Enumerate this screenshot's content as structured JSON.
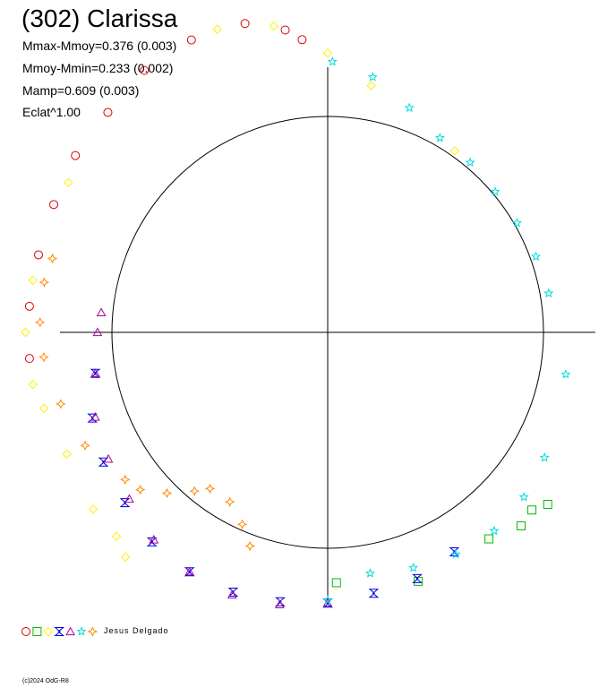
{
  "title": "(302) Clarissa",
  "stats": [
    "Mmax-Mmoy=0.376 (0.003)",
    "Mmoy-Mmin=0.233 (0.002)",
    "Mamp=0.609 (0.003)",
    "Eclat^1.00"
  ],
  "legend_credit": "Jesus Delgado",
  "copyright": "(c)2024 OdG-R8",
  "colors": {
    "red": "#dd0000",
    "green": "#00bb00",
    "yellow": "#ffee00",
    "blue": "#0000dd",
    "purple": "#aa0099",
    "cyan": "#00dddd",
    "orange": "#ff8800"
  },
  "chart_data": {
    "type": "scatter",
    "polar": true,
    "reference_circle_magnitude": 0.0,
    "radius_unit": "relative magnitude (mag)",
    "series": [
      {
        "marker": "circle",
        "color_key": "red",
        "points": [
          [
            -95,
            0.29
          ],
          [
            -85,
            0.29
          ],
          [
            -75,
            0.29
          ],
          [
            -65,
            0.3
          ],
          [
            -55,
            0.32
          ],
          [
            -45,
            0.33
          ],
          [
            -35,
            0.36
          ],
          [
            -25,
            0.37
          ],
          [
            -15,
            0.36
          ],
          [
            -8,
            0.31
          ],
          [
            -5,
            0.27
          ]
        ]
      },
      {
        "marker": "square",
        "color_key": "green",
        "points": [
          [
            128,
            0.22
          ],
          [
            131,
            0.19
          ],
          [
            135,
            0.2
          ],
          [
            142,
            0.16
          ],
          [
            160,
            0.17
          ],
          [
            178,
            0.12
          ]
        ]
      },
      {
        "marker": "diamond",
        "color_key": "yellow",
        "points": [
          [
            -115,
            0.25
          ],
          [
            -105,
            0.27
          ],
          [
            -100,
            0.29
          ],
          [
            -90,
            0.3
          ],
          [
            -80,
            0.29
          ],
          [
            -60,
            0.29
          ],
          [
            -20,
            0.37
          ],
          [
            -10,
            0.33
          ],
          [
            0,
            0.22
          ],
          [
            10,
            0.12
          ],
          [
            35,
            0.02
          ],
          [
            -138,
            0.3
          ],
          [
            -134,
            0.27
          ],
          [
            -127,
            0.27
          ]
        ]
      },
      {
        "marker": "cross",
        "color_key": "blue",
        "points": [
          [
            150,
            0.13
          ],
          [
            160,
            0.16
          ],
          [
            170,
            0.17
          ],
          [
            180,
            0.19
          ],
          [
            190,
            0.2
          ],
          [
            200,
            0.21
          ],
          [
            210,
            0.21
          ],
          [
            220,
            0.2
          ],
          [
            230,
            0.17
          ],
          [
            240,
            0.15
          ],
          [
            250,
            0.12
          ],
          [
            260,
            0.07
          ]
        ]
      },
      {
        "marker": "triangle",
        "color_key": "purple",
        "points": [
          [
            180,
            0.19
          ],
          [
            190,
            0.21
          ],
          [
            200,
            0.22
          ],
          [
            210,
            0.21
          ],
          [
            220,
            0.19
          ],
          [
            230,
            0.15
          ],
          [
            240,
            0.13
          ],
          [
            250,
            0.11
          ],
          [
            260,
            0.07
          ],
          [
            270,
            0.05
          ],
          [
            275,
            0.04
          ]
        ]
      },
      {
        "marker": "star",
        "color_key": "cyan",
        "points": [
          [
            1,
            0.19
          ],
          [
            10,
            0.15
          ],
          [
            20,
            0.08
          ],
          [
            30,
            0.03
          ],
          [
            40,
            0.02
          ],
          [
            50,
            0.01
          ],
          [
            60,
            0.01
          ],
          [
            70,
            0.02
          ],
          [
            80,
            0.03
          ],
          [
            100,
            0.09
          ],
          [
            120,
            0.12
          ],
          [
            130,
            0.14
          ],
          [
            140,
            0.15
          ],
          [
            150,
            0.14
          ],
          [
            160,
            0.12
          ],
          [
            170,
            0.1
          ],
          [
            180,
            0.18
          ]
        ]
      },
      {
        "marker": "fourstar",
        "color_key": "orange",
        "points": [
          [
            -160,
            0.04
          ],
          [
            -156,
            -0.02
          ],
          [
            -150,
            -0.07
          ],
          [
            -143,
            -0.07
          ],
          [
            -140,
            -0.03
          ],
          [
            -135,
            0.04
          ],
          [
            -130,
            0.1
          ],
          [
            -126,
            0.12
          ],
          [
            -115,
            0.18
          ],
          [
            -105,
            0.21
          ],
          [
            -95,
            0.24
          ],
          [
            -88,
            0.25
          ],
          [
            -80,
            0.25
          ],
          [
            -75,
            0.24
          ]
        ]
      }
    ]
  }
}
